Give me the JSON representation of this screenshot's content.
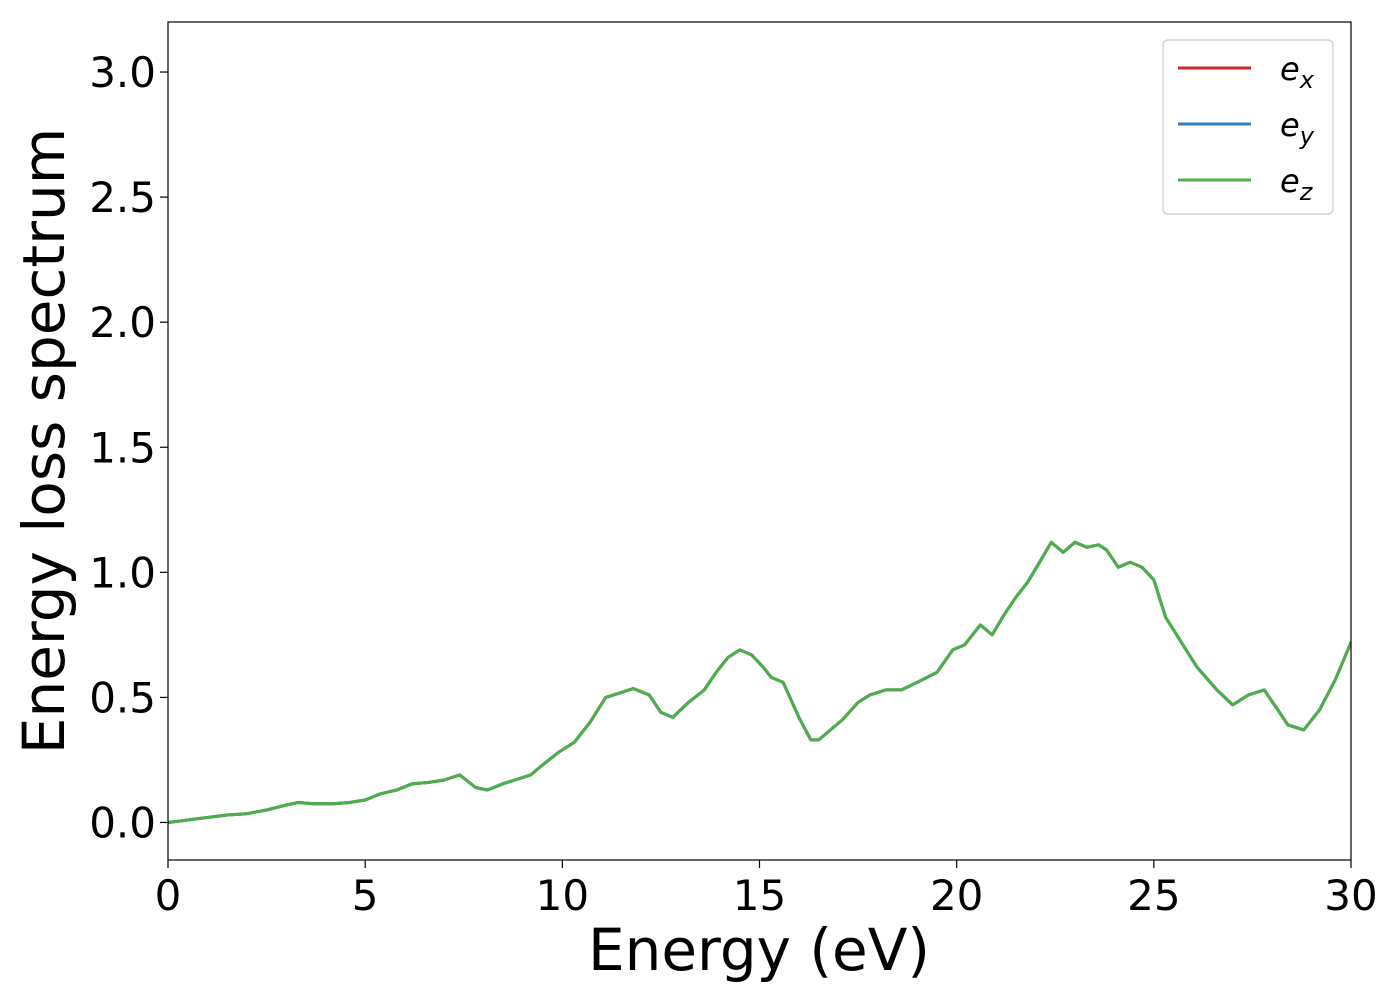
{
  "chart_data": {
    "type": "line",
    "xlabel": "Energy (eV)",
    "ylabel": "Energy loss spectrum",
    "xlim": [
      0,
      30
    ],
    "ylim": [
      -0.15,
      3.2
    ],
    "xticks": [
      "0",
      "5",
      "10",
      "15",
      "20",
      "25",
      "30"
    ],
    "yticks": [
      "0.0",
      "0.5",
      "1.0",
      "1.5",
      "2.0",
      "2.5",
      "3.0"
    ],
    "grid": false,
    "legend_position": "top-right",
    "x": [
      0,
      0.5,
      1,
      1.5,
      2,
      2.5,
      3,
      3.3,
      3.7,
      4.2,
      4.6,
      5,
      5.4,
      5.8,
      6.2,
      6.6,
      7,
      7.4,
      7.8,
      8.1,
      8.5,
      8.8,
      9.2,
      9.5,
      9.9,
      10.3,
      10.7,
      11.1,
      11.5,
      11.8,
      12.2,
      12.5,
      12.8,
      13.2,
      13.6,
      13.9,
      14.2,
      14.5,
      14.8,
      15.1,
      15.3,
      15.6,
      16,
      16.3,
      16.5,
      16.8,
      17.1,
      17.5,
      17.8,
      18.2,
      18.6,
      19,
      19.5,
      19.9,
      20.2,
      20.5,
      20.6,
      20.9,
      21.2,
      21.5,
      21.8,
      22.1,
      22.4,
      22.7,
      23,
      23.3,
      23.6,
      23.8,
      24.1,
      24.4,
      24.7,
      25,
      25.3,
      25.7,
      26.1,
      26.6,
      27,
      27.4,
      27.8,
      28.1,
      28.4,
      28.8,
      29.2,
      29.6,
      30
    ],
    "series": [
      {
        "name": "e_x",
        "color": "#d62728",
        "values": [
          0.0,
          0.01,
          0.02,
          0.03,
          0.035,
          0.05,
          0.07,
          0.08,
          0.075,
          0.075,
          0.08,
          0.09,
          0.115,
          0.13,
          0.155,
          0.16,
          0.17,
          0.19,
          0.14,
          0.13,
          0.155,
          0.17,
          0.19,
          0.23,
          0.28,
          0.32,
          0.4,
          0.5,
          0.52,
          0.535,
          0.51,
          0.44,
          0.42,
          0.48,
          0.53,
          0.6,
          0.66,
          0.69,
          0.67,
          0.62,
          0.58,
          0.56,
          0.42,
          0.33,
          0.33,
          0.37,
          0.41,
          0.48,
          0.51,
          0.53,
          0.53,
          0.56,
          0.6,
          0.69,
          0.71,
          0.77,
          0.79,
          0.75,
          0.83,
          0.9,
          0.96,
          1.04,
          1.12,
          1.08,
          1.12,
          1.1,
          1.11,
          1.09,
          1.02,
          1.04,
          1.02,
          0.97,
          0.82,
          0.72,
          0.62,
          0.53,
          0.47,
          0.51,
          0.53,
          0.46,
          0.39,
          0.37,
          0.45,
          0.57,
          0.72
        ]
      },
      {
        "name": "e_y",
        "color": "#377eb8",
        "values": [
          0.0,
          0.01,
          0.02,
          0.03,
          0.035,
          0.05,
          0.07,
          0.08,
          0.075,
          0.075,
          0.08,
          0.09,
          0.115,
          0.13,
          0.155,
          0.16,
          0.17,
          0.19,
          0.14,
          0.13,
          0.155,
          0.17,
          0.19,
          0.23,
          0.28,
          0.32,
          0.4,
          0.5,
          0.52,
          0.535,
          0.51,
          0.44,
          0.42,
          0.48,
          0.53,
          0.6,
          0.66,
          0.69,
          0.67,
          0.62,
          0.58,
          0.56,
          0.42,
          0.33,
          0.33,
          0.37,
          0.41,
          0.48,
          0.51,
          0.53,
          0.53,
          0.56,
          0.6,
          0.69,
          0.71,
          0.77,
          0.79,
          0.75,
          0.83,
          0.9,
          0.96,
          1.04,
          1.12,
          1.08,
          1.12,
          1.1,
          1.11,
          1.09,
          1.02,
          1.04,
          1.02,
          0.97,
          0.82,
          0.72,
          0.62,
          0.53,
          0.47,
          0.51,
          0.53,
          0.46,
          0.39,
          0.37,
          0.45,
          0.57,
          0.72
        ]
      },
      {
        "name": "e_z",
        "color": "#4daf4a",
        "values": [
          0.0,
          0.01,
          0.02,
          0.03,
          0.035,
          0.05,
          0.07,
          0.08,
          0.075,
          0.075,
          0.08,
          0.09,
          0.115,
          0.13,
          0.155,
          0.16,
          0.17,
          0.19,
          0.14,
          0.13,
          0.155,
          0.17,
          0.19,
          0.23,
          0.28,
          0.32,
          0.4,
          0.5,
          0.52,
          0.535,
          0.51,
          0.44,
          0.42,
          0.48,
          0.53,
          0.6,
          0.66,
          0.69,
          0.67,
          0.62,
          0.58,
          0.56,
          0.42,
          0.33,
          0.33,
          0.37,
          0.41,
          0.48,
          0.51,
          0.53,
          0.53,
          0.56,
          0.6,
          0.69,
          0.71,
          0.77,
          0.79,
          0.75,
          0.83,
          0.9,
          0.96,
          1.04,
          1.12,
          1.08,
          1.12,
          1.1,
          1.11,
          1.09,
          1.02,
          1.04,
          1.02,
          0.97,
          0.82,
          0.72,
          0.62,
          0.53,
          0.47,
          0.51,
          0.53,
          0.46,
          0.39,
          0.37,
          0.45,
          0.57,
          0.72
        ]
      }
    ],
    "legend": [
      {
        "base": "e",
        "sub": "x",
        "color": "#d62728"
      },
      {
        "base": "e",
        "sub": "y",
        "color": "#377eb8"
      },
      {
        "base": "e",
        "sub": "z",
        "color": "#4daf4a"
      }
    ]
  }
}
